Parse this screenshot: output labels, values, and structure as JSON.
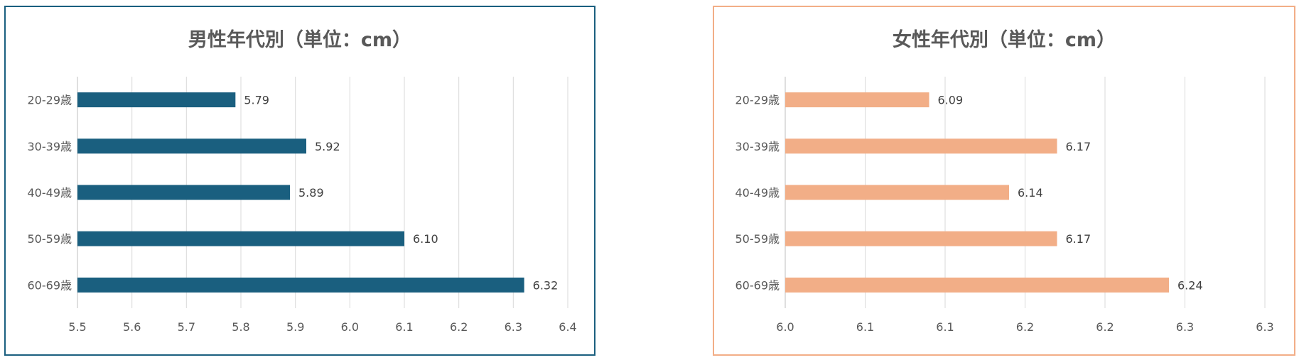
{
  "chart_data": [
    {
      "type": "bar",
      "orientation": "horizontal",
      "title": "男性年代別（単位：cm）",
      "categories": [
        "20-29歳",
        "30-39歳",
        "40-49歳",
        "50-59歳",
        "60-69歳"
      ],
      "values": [
        5.79,
        5.92,
        5.89,
        6.1,
        6.32
      ],
      "data_labels": [
        "5.79",
        "5.92",
        "5.89",
        "6.10",
        "6.32"
      ],
      "xlim": [
        5.5,
        6.4
      ],
      "xticks": [
        "5.5",
        "5.6",
        "5.7",
        "5.8",
        "5.9",
        "6.0",
        "6.1",
        "6.2",
        "6.3",
        "6.4"
      ],
      "grid": true,
      "legend": "none",
      "bar_color": "#1a5f7f",
      "border_color": "#1a5f7f"
    },
    {
      "type": "bar",
      "orientation": "horizontal",
      "title": "女性年代別（単位：cm）",
      "categories": [
        "20-29歳",
        "30-39歳",
        "40-49歳",
        "50-59歳",
        "60-69歳"
      ],
      "values": [
        6.09,
        6.17,
        6.14,
        6.17,
        6.24
      ],
      "data_labels": [
        "6.09",
        "6.17",
        "6.14",
        "6.17",
        "6.24"
      ],
      "xlim": [
        6.0,
        6.3
      ],
      "xticks": [
        "6.0",
        "6.1",
        "6.1",
        "6.2",
        "6.2",
        "6.3",
        "6.3"
      ],
      "grid": true,
      "legend": "none",
      "bar_color": "#f2ae87",
      "border_color": "#f2ae87"
    }
  ]
}
